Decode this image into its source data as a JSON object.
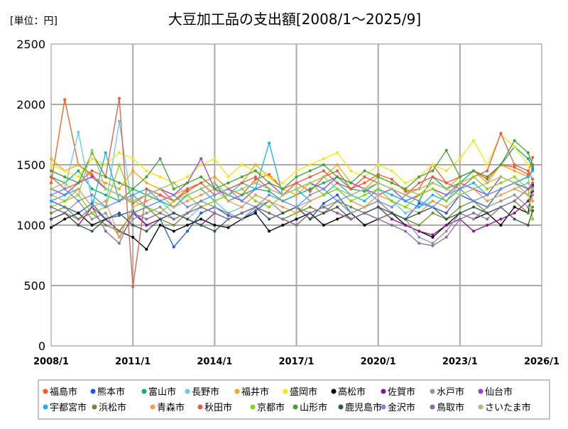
{
  "chart_data": {
    "type": "line",
    "title": "大豆加工品の支出額[2008/1～2025/9]",
    "unit_label": "[単位：円]",
    "xlabel": "",
    "ylabel": "",
    "ylim": [
      0,
      2500
    ],
    "yticks": [
      0,
      500,
      1000,
      1500,
      2000,
      2500
    ],
    "xticks": [
      "2008/1",
      "2011/1",
      "2014/1",
      "2017/1",
      "2020/1",
      "2023/1",
      "2026/1"
    ],
    "grid": true,
    "legend_position": "bottom",
    "x": [
      "2008/1",
      "2008/7",
      "2009/1",
      "2009/7",
      "2010/1",
      "2010/7",
      "2011/1",
      "2011/7",
      "2012/1",
      "2012/7",
      "2013/1",
      "2013/7",
      "2014/1",
      "2014/7",
      "2015/1",
      "2015/7",
      "2016/1",
      "2016/7",
      "2017/1",
      "2017/7",
      "2018/1",
      "2018/7",
      "2019/1",
      "2019/7",
      "2020/1",
      "2020/7",
      "2021/1",
      "2021/7",
      "2022/1",
      "2022/7",
      "2023/1",
      "2023/7",
      "2024/1",
      "2024/7",
      "2025/1",
      "2025/7",
      "2025/9"
    ],
    "series": [
      {
        "name": "福島市",
        "color": "#ff5a1e",
        "values": [
          1350,
          2040,
          1500,
          1420,
          1300,
          1250,
          1180,
          1250,
          1300,
          1200,
          1280,
          1350,
          1400,
          1300,
          1250,
          1380,
          1420,
          1300,
          1350,
          1280,
          1400,
          1450,
          1300,
          1350,
          1420,
          1380,
          1280,
          1300,
          1500,
          1350,
          1400,
          1450,
          1380,
          1500,
          1480,
          1420,
          1560
        ]
      },
      {
        "name": "熊本市",
        "color": "#1e5adc",
        "values": [
          1200,
          1150,
          1100,
          1180,
          1050,
          1080,
          1120,
          1000,
          1050,
          820,
          950,
          1100,
          1150,
          1080,
          1050,
          1120,
          1200,
          1100,
          1150,
          1050,
          1180,
          1250,
          1100,
          1150,
          1200,
          1100,
          1050,
          1180,
          1150,
          1100,
          1250,
          1200,
          1150,
          1300,
          1350,
          1400,
          1460
        ]
      },
      {
        "name": "富山市",
        "color": "#14aa78",
        "values": [
          1400,
          1350,
          1450,
          1300,
          1250,
          1200,
          1300,
          1250,
          1200,
          1150,
          1250,
          1300,
          1350,
          1200,
          1250,
          1300,
          1280,
          1200,
          1250,
          1300,
          1350,
          1400,
          1300,
          1280,
          1350,
          1300,
          1250,
          1200,
          1400,
          1300,
          1350,
          1450,
          1400,
          1500,
          1650,
          1550,
          1480
        ]
      },
      {
        "name": "長野市",
        "color": "#64c8f0",
        "values": [
          1250,
          1300,
          1770,
          1200,
          1150,
          1860,
          1100,
          1150,
          1200,
          1100,
          1050,
          1150,
          1200,
          1100,
          1150,
          1250,
          1200,
          1100,
          1150,
          1200,
          1250,
          1300,
          1200,
          1150,
          1250,
          1200,
          1100,
          1150,
          1200,
          1150,
          1250,
          1300,
          1200,
          1250,
          1300,
          1350,
          1300
        ]
      },
      {
        "name": "福井市",
        "color": "#f0aa14",
        "values": [
          1550,
          1450,
          1500,
          1400,
          1350,
          1300,
          1450,
          1350,
          1300,
          1250,
          1300,
          1350,
          1400,
          1300,
          1350,
          1500,
          1400,
          1300,
          1250,
          1350,
          1400,
          1500,
          1350,
          1300,
          1400,
          1350,
          1300,
          1250,
          1350,
          1300,
          1400,
          1450,
          1350,
          1500,
          1450,
          1400,
          1200
        ]
      },
      {
        "name": "盛岡市",
        "color": "#f5e614",
        "values": [
          1500,
          1450,
          1400,
          1550,
          1500,
          1600,
          1550,
          1450,
          1400,
          1350,
          1400,
          1500,
          1550,
          1400,
          1500,
          1450,
          1400,
          1350,
          1450,
          1500,
          1550,
          1600,
          1450,
          1400,
          1500,
          1450,
          1350,
          1400,
          1500,
          1450,
          1550,
          1700,
          1500,
          1750,
          1650,
          1500,
          1350
        ]
      },
      {
        "name": "高松市",
        "color": "#000000",
        "values": [
          980,
          1050,
          1100,
          1000,
          1050,
          950,
          900,
          800,
          1000,
          950,
          1000,
          1050,
          1000,
          980,
          1050,
          1100,
          950,
          1000,
          1050,
          1100,
          1000,
          1050,
          1100,
          1000,
          1050,
          1100,
          1000,
          950,
          900,
          1000,
          1100,
          1050,
          1100,
          1000,
          1150,
          1100,
          1330
        ]
      },
      {
        "name": "佐賀市",
        "color": "#8c148c",
        "values": [
          1050,
          1100,
          1000,
          1150,
          1050,
          950,
          1100,
          1000,
          1050,
          1100,
          1050,
          1000,
          1100,
          1050,
          1100,
          1150,
          1100,
          1050,
          1000,
          1100,
          1150,
          1100,
          1050,
          1100,
          1150,
          1050,
          1000,
          950,
          920,
          1000,
          1050,
          950,
          1000,
          1050,
          1100,
          1200,
          1280
        ]
      },
      {
        "name": "水戸市",
        "color": "#8c96a0",
        "values": [
          1150,
          1100,
          1200,
          1050,
          1100,
          900,
          1050,
          1100,
          1150,
          1050,
          1100,
          1200,
          1150,
          1100,
          1050,
          1150,
          1200,
          1100,
          1150,
          1100,
          1150,
          1200,
          1100,
          1150,
          1200,
          1100,
          1050,
          900,
          850,
          950,
          1100,
          1050,
          1150,
          1200,
          1250,
          1150,
          1250
        ]
      },
      {
        "name": "仙台市",
        "color": "#a03cdc",
        "values": [
          1300,
          1250,
          1350,
          1400,
          1300,
          1250,
          1200,
          1250,
          1300,
          1250,
          1350,
          1550,
          1300,
          1250,
          1200,
          1300,
          1350,
          1250,
          1300,
          1350,
          1300,
          1400,
          1350,
          1300,
          1250,
          1300,
          1200,
          1250,
          1300,
          1250,
          1350,
          1300,
          1250,
          1400,
          1350,
          1300,
          1320
        ]
      },
      {
        "name": "宇都宮市",
        "color": "#14b4f0",
        "values": [
          1200,
          1250,
          1300,
          1150,
          1600,
          1200,
          1250,
          1300,
          1200,
          1150,
          1250,
          1300,
          1200,
          1250,
          1350,
          1300,
          1680,
          1250,
          1300,
          1200,
          1250,
          1350,
          1250,
          1200,
          1300,
          1250,
          1200,
          1150,
          1250,
          1200,
          1300,
          1350,
          1250,
          1300,
          1350,
          1400,
          1450
        ]
      },
      {
        "name": "浜松市",
        "color": "#6e8c32",
        "values": [
          1100,
          1150,
          1050,
          1100,
          1000,
          950,
          1100,
          1150,
          1050,
          1000,
          1100,
          1150,
          1100,
          1050,
          1100,
          1150,
          1100,
          1050,
          1100,
          1150,
          1100,
          1200,
          1150,
          1100,
          1050,
          1100,
          1050,
          1000,
          1100,
          1050,
          1150,
          1200,
          1100,
          1150,
          1200,
          1100,
          1150
        ]
      },
      {
        "name": "青森市",
        "color": "#f0a050",
        "values": [
          1250,
          1200,
          1300,
          1150,
          1200,
          900,
          1150,
          1200,
          1250,
          1150,
          1200,
          1250,
          1300,
          1200,
          1150,
          1250,
          1200,
          1150,
          1100,
          1200,
          1250,
          1300,
          1200,
          1150,
          1250,
          1200,
          1150,
          1100,
          1200,
          1150,
          1250,
          1300,
          1200,
          1250,
          1300,
          1250,
          1200
        ]
      },
      {
        "name": "秋田市",
        "color": "#e65a46",
        "values": [
          1400,
          1300,
          1350,
          1450,
          1400,
          2050,
          490,
          1300,
          1250,
          1200,
          1300,
          1350,
          1250,
          1300,
          1350,
          1400,
          1300,
          1250,
          1350,
          1400,
          1450,
          1350,
          1300,
          1400,
          1350,
          1300,
          1250,
          1350,
          1400,
          1350,
          1300,
          1400,
          1450,
          1760,
          1500,
          1450,
          1380
        ]
      },
      {
        "name": "京都市",
        "color": "#8cd214",
        "values": [
          1150,
          1200,
          1250,
          1100,
          1150,
          1500,
          1200,
          1150,
          1100,
          1200,
          1250,
          1150,
          1200,
          1250,
          1300,
          1200,
          1150,
          1250,
          1300,
          1350,
          1250,
          1300,
          1200,
          1250,
          1300,
          1200,
          1150,
          1250,
          1300,
          1200,
          1350,
          1400,
          1300,
          1350,
          1400,
          1300,
          1050
        ]
      },
      {
        "name": "山形市",
        "color": "#46a032",
        "values": [
          1450,
          1400,
          1350,
          1600,
          1400,
          1350,
          1300,
          1400,
          1550,
          1300,
          1350,
          1400,
          1300,
          1350,
          1400,
          1450,
          1350,
          1300,
          1400,
          1450,
          1500,
          1400,
          1350,
          1450,
          1400,
          1350,
          1300,
          1400,
          1450,
          1620,
          1400,
          1450,
          1400,
          1500,
          1700,
          1600,
          1500
        ]
      },
      {
        "name": "鹿児島市",
        "color": "#325a46",
        "values": [
          1050,
          1100,
          1000,
          950,
          1050,
          1100,
          1000,
          950,
          1050,
          1100,
          1050,
          1000,
          950,
          1050,
          1100,
          1150,
          1050,
          1100,
          1150,
          1050,
          1100,
          1150,
          1050,
          1100,
          1150,
          1100,
          1050,
          1100,
          1150,
          1050,
          1100,
          1150,
          1100,
          1150,
          1050,
          1000,
          1120
        ]
      },
      {
        "name": "金沢市",
        "color": "#788cd2",
        "values": [
          1250,
          1300,
          1200,
          1250,
          1150,
          1200,
          1250,
          1150,
          1200,
          1250,
          1150,
          1200,
          1250,
          1300,
          1200,
          1150,
          1250,
          1200,
          1150,
          1250,
          1300,
          1200,
          1250,
          1300,
          1200,
          1150,
          1250,
          1200,
          1150,
          1250,
          1300,
          1200,
          1250,
          1300,
          1350,
          1250,
          1300
        ]
      },
      {
        "name": "鳥取市",
        "color": "#8c6e96",
        "values": [
          1150,
          1100,
          1050,
          1150,
          950,
          850,
          1100,
          1050,
          1100,
          1050,
          1100,
          1150,
          1100,
          1050,
          1100,
          1150,
          1100,
          1050,
          1000,
          1100,
          1150,
          1100,
          1050,
          1100,
          1050,
          1000,
          950,
          850,
          830,
          900,
          1050,
          1100,
          1050,
          1150,
          1200,
          1300,
          1350
        ]
      },
      {
        "name": "さいたま市",
        "color": "#a0c36e",
        "values": [
          1300,
          1350,
          1250,
          1620,
          1300,
          1250,
          1200,
          1250,
          1300,
          1350,
          1250,
          1300,
          1350,
          1250,
          1300,
          1350,
          1300,
          1250,
          1300,
          1350,
          1400,
          1300,
          1250,
          1300,
          1350,
          1300,
          1250,
          1300,
          1350,
          1300,
          1250,
          1300,
          1350,
          1400,
          1350,
          1250,
          1300
        ]
      }
    ]
  }
}
